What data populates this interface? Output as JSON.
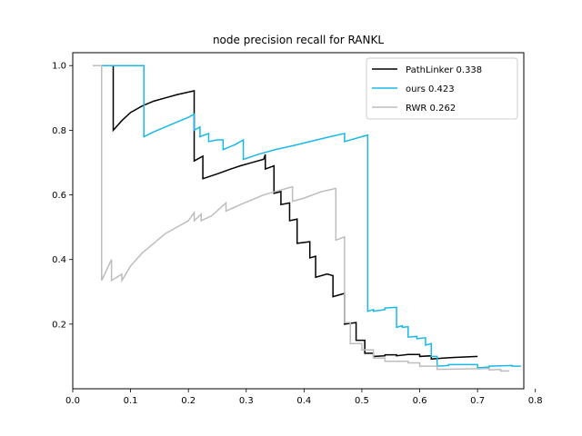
{
  "chart_data": {
    "type": "line",
    "title": "node precision recall for RANKL",
    "xlabel": "",
    "ylabel": "",
    "xlim": [
      0.0,
      0.78
    ],
    "ylim": [
      0.0,
      1.04
    ],
    "x_ticks": [
      0.0,
      0.1,
      0.2,
      0.3,
      0.4,
      0.5,
      0.6,
      0.7,
      0.8
    ],
    "x_tick_labels": [
      "0.0",
      "0.1",
      "0.2",
      "0.3",
      "0.4",
      "0.5",
      "0.6",
      "0.7",
      "0.8"
    ],
    "y_ticks": [
      0.2,
      0.4,
      0.6,
      0.8,
      1.0
    ],
    "y_tick_labels": [
      "0.2",
      "0.4",
      "0.6",
      "0.8",
      "1.0"
    ],
    "grid": false,
    "legend_position": "top-right",
    "series": [
      {
        "name": "PathLinker 0.338",
        "color": "#000000",
        "points": [
          [
            0.035,
            1.0
          ],
          [
            0.07,
            1.0
          ],
          [
            0.07,
            0.8
          ],
          [
            0.085,
            0.83
          ],
          [
            0.1,
            0.855
          ],
          [
            0.12,
            0.875
          ],
          [
            0.14,
            0.89
          ],
          [
            0.16,
            0.9
          ],
          [
            0.18,
            0.91
          ],
          [
            0.2,
            0.918
          ],
          [
            0.21,
            0.922
          ],
          [
            0.21,
            0.705
          ],
          [
            0.225,
            0.72
          ],
          [
            0.225,
            0.65
          ],
          [
            0.25,
            0.665
          ],
          [
            0.27,
            0.678
          ],
          [
            0.29,
            0.69
          ],
          [
            0.31,
            0.7
          ],
          [
            0.33,
            0.71
          ],
          [
            0.333,
            0.725
          ],
          [
            0.333,
            0.68
          ],
          [
            0.348,
            0.69
          ],
          [
            0.348,
            0.605
          ],
          [
            0.36,
            0.61
          ],
          [
            0.36,
            0.57
          ],
          [
            0.375,
            0.575
          ],
          [
            0.375,
            0.52
          ],
          [
            0.388,
            0.525
          ],
          [
            0.388,
            0.45
          ],
          [
            0.41,
            0.455
          ],
          [
            0.41,
            0.405
          ],
          [
            0.42,
            0.41
          ],
          [
            0.42,
            0.345
          ],
          [
            0.44,
            0.355
          ],
          [
            0.45,
            0.35
          ],
          [
            0.45,
            0.285
          ],
          [
            0.47,
            0.295
          ],
          [
            0.47,
            0.2
          ],
          [
            0.49,
            0.205
          ],
          [
            0.49,
            0.15
          ],
          [
            0.505,
            0.15
          ],
          [
            0.505,
            0.11
          ],
          [
            0.52,
            0.11
          ],
          [
            0.52,
            0.1
          ],
          [
            0.54,
            0.102
          ],
          [
            0.54,
            0.105
          ],
          [
            0.56,
            0.105
          ],
          [
            0.56,
            0.102
          ],
          [
            0.58,
            0.106
          ],
          [
            0.6,
            0.106
          ],
          [
            0.6,
            0.1
          ],
          [
            0.62,
            0.102
          ],
          [
            0.62,
            0.092
          ],
          [
            0.64,
            0.095
          ],
          [
            0.66,
            0.097
          ],
          [
            0.7,
            0.1
          ]
        ]
      },
      {
        "name": "ours 0.423",
        "color": "#1ab8e8",
        "points": [
          [
            0.035,
            1.0
          ],
          [
            0.123,
            1.0
          ],
          [
            0.123,
            0.78
          ],
          [
            0.14,
            0.795
          ],
          [
            0.16,
            0.81
          ],
          [
            0.18,
            0.825
          ],
          [
            0.2,
            0.84
          ],
          [
            0.21,
            0.85
          ],
          [
            0.21,
            0.8
          ],
          [
            0.22,
            0.81
          ],
          [
            0.22,
            0.78
          ],
          [
            0.235,
            0.79
          ],
          [
            0.235,
            0.765
          ],
          [
            0.25,
            0.77
          ],
          [
            0.26,
            0.77
          ],
          [
            0.26,
            0.74
          ],
          [
            0.28,
            0.755
          ],
          [
            0.295,
            0.77
          ],
          [
            0.295,
            0.71
          ],
          [
            0.32,
            0.725
          ],
          [
            0.35,
            0.74
          ],
          [
            0.38,
            0.752
          ],
          [
            0.41,
            0.765
          ],
          [
            0.44,
            0.778
          ],
          [
            0.47,
            0.79
          ],
          [
            0.47,
            0.765
          ],
          [
            0.49,
            0.775
          ],
          [
            0.51,
            0.785
          ],
          [
            0.51,
            0.24
          ],
          [
            0.52,
            0.245
          ],
          [
            0.52,
            0.24
          ],
          [
            0.54,
            0.245
          ],
          [
            0.54,
            0.25
          ],
          [
            0.56,
            0.252
          ],
          [
            0.56,
            0.19
          ],
          [
            0.57,
            0.195
          ],
          [
            0.57,
            0.19
          ],
          [
            0.58,
            0.192
          ],
          [
            0.58,
            0.16
          ],
          [
            0.595,
            0.162
          ],
          [
            0.595,
            0.155
          ],
          [
            0.61,
            0.158
          ],
          [
            0.61,
            0.135
          ],
          [
            0.62,
            0.14
          ],
          [
            0.62,
            0.1
          ],
          [
            0.63,
            0.1
          ],
          [
            0.63,
            0.07
          ],
          [
            0.65,
            0.072
          ],
          [
            0.65,
            0.075
          ],
          [
            0.7,
            0.075
          ],
          [
            0.7,
            0.065
          ],
          [
            0.72,
            0.067
          ],
          [
            0.72,
            0.07
          ],
          [
            0.76,
            0.072
          ],
          [
            0.76,
            0.07
          ],
          [
            0.775,
            0.07
          ]
        ]
      },
      {
        "name": "RWR 0.262",
        "color": "#bdbdbd",
        "points": [
          [
            0.035,
            1.0
          ],
          [
            0.05,
            1.0
          ],
          [
            0.05,
            0.335
          ],
          [
            0.067,
            0.4
          ],
          [
            0.067,
            0.335
          ],
          [
            0.085,
            0.355
          ],
          [
            0.085,
            0.335
          ],
          [
            0.1,
            0.38
          ],
          [
            0.12,
            0.42
          ],
          [
            0.14,
            0.45
          ],
          [
            0.16,
            0.48
          ],
          [
            0.18,
            0.5
          ],
          [
            0.2,
            0.52
          ],
          [
            0.21,
            0.545
          ],
          [
            0.21,
            0.52
          ],
          [
            0.222,
            0.54
          ],
          [
            0.222,
            0.52
          ],
          [
            0.24,
            0.535
          ],
          [
            0.265,
            0.575
          ],
          [
            0.265,
            0.55
          ],
          [
            0.29,
            0.57
          ],
          [
            0.31,
            0.585
          ],
          [
            0.33,
            0.6
          ],
          [
            0.36,
            0.615
          ],
          [
            0.38,
            0.625
          ],
          [
            0.38,
            0.58
          ],
          [
            0.4,
            0.59
          ],
          [
            0.43,
            0.61
          ],
          [
            0.455,
            0.62
          ],
          [
            0.455,
            0.46
          ],
          [
            0.47,
            0.47
          ],
          [
            0.47,
            0.205
          ],
          [
            0.48,
            0.205
          ],
          [
            0.48,
            0.14
          ],
          [
            0.5,
            0.14
          ],
          [
            0.5,
            0.12
          ],
          [
            0.52,
            0.12
          ],
          [
            0.52,
            0.095
          ],
          [
            0.54,
            0.095
          ],
          [
            0.54,
            0.085
          ],
          [
            0.58,
            0.085
          ],
          [
            0.58,
            0.08
          ],
          [
            0.6,
            0.08
          ],
          [
            0.6,
            0.07
          ],
          [
            0.63,
            0.07
          ],
          [
            0.63,
            0.06
          ],
          [
            0.7,
            0.062
          ],
          [
            0.72,
            0.063
          ],
          [
            0.72,
            0.058
          ],
          [
            0.74,
            0.06
          ],
          [
            0.74,
            0.055
          ],
          [
            0.755,
            0.055
          ]
        ]
      }
    ]
  }
}
